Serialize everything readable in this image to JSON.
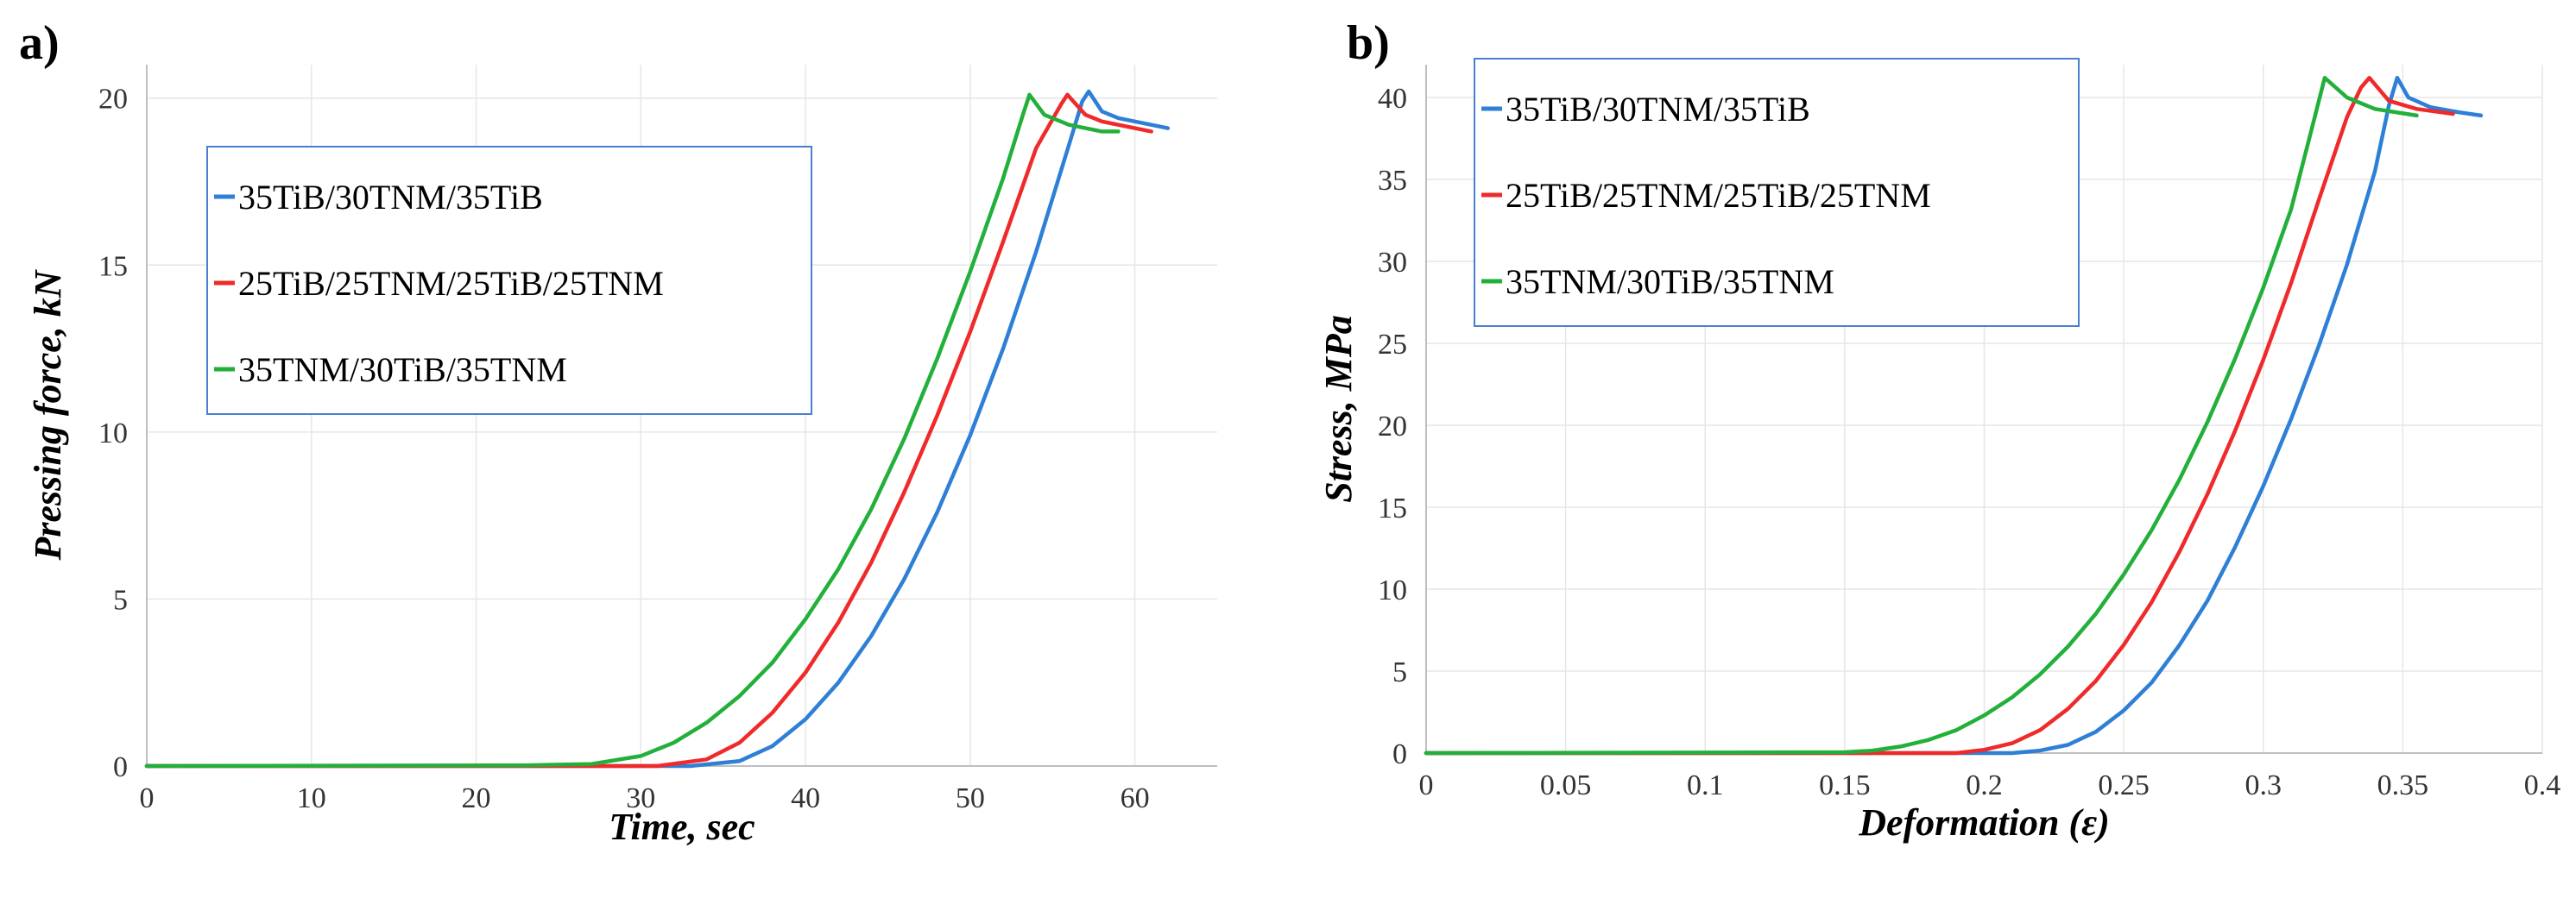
{
  "chart_data": [
    {
      "type": "line",
      "panel_label": "a)",
      "title": "",
      "xlabel": "Time, sec",
      "ylabel": "Pressing force, kN",
      "xlim": [
        0,
        65
      ],
      "ylim": [
        0,
        21
      ],
      "xticks": [
        0,
        10,
        20,
        30,
        40,
        50,
        60
      ],
      "yticks": [
        0,
        5,
        10,
        15,
        20
      ],
      "xtick_labels": [
        "0",
        "10",
        "20",
        "30",
        "40",
        "50",
        "60"
      ],
      "ytick_labels": [
        "0",
        "5",
        "10",
        "15",
        "20"
      ],
      "grid": true,
      "legend": "upper-left",
      "series": [
        {
          "name": "35TiB/30TNM/35TiB",
          "color": "#2e7fd6",
          "x": [
            0,
            33,
            36,
            38,
            40,
            42,
            44,
            46,
            48,
            50,
            52,
            54,
            56,
            56.8,
            57.2,
            58,
            59,
            60,
            61,
            62
          ],
          "y": [
            0,
            0,
            0.15,
            0.6,
            1.4,
            2.5,
            3.9,
            5.6,
            7.6,
            9.9,
            12.5,
            15.4,
            18.6,
            19.9,
            20.2,
            19.6,
            19.4,
            19.3,
            19.2,
            19.1
          ]
        },
        {
          "name": "25TiB/25TNM/25TiB/25TNM",
          "color": "#f02a2a",
          "x": [
            0,
            31,
            34,
            36,
            38,
            40,
            42,
            44,
            46,
            48,
            50,
            52,
            54,
            55.5,
            55.9,
            57,
            58,
            59,
            60,
            61
          ],
          "y": [
            0,
            0,
            0.2,
            0.7,
            1.6,
            2.8,
            4.3,
            6.1,
            8.2,
            10.5,
            13.0,
            15.7,
            18.5,
            19.8,
            20.1,
            19.5,
            19.3,
            19.2,
            19.1,
            19.0
          ]
        },
        {
          "name": "35TNM/30TiB/35TNM",
          "color": "#22b03a",
          "x": [
            0,
            23,
            27,
            30,
            32,
            34,
            36,
            38,
            40,
            42,
            44,
            46,
            48,
            50,
            52,
            53.2,
            53.6,
            54.5,
            56,
            57,
            58,
            59
          ],
          "y": [
            0,
            0.02,
            0.06,
            0.3,
            0.7,
            1.3,
            2.1,
            3.1,
            4.4,
            5.9,
            7.7,
            9.8,
            12.2,
            14.8,
            17.6,
            19.5,
            20.1,
            19.5,
            19.2,
            19.1,
            19.0,
            19.0
          ]
        }
      ]
    },
    {
      "type": "line",
      "panel_label": "b)",
      "title": "",
      "xlabel": "Deformation (ε)",
      "ylabel": "Stress, MPa",
      "xlim": [
        0,
        0.4
      ],
      "ylim": [
        0,
        42
      ],
      "xticks": [
        0,
        0.05,
        0.1,
        0.15,
        0.2,
        0.25,
        0.3,
        0.35,
        0.4
      ],
      "yticks": [
        0,
        5,
        10,
        15,
        20,
        25,
        30,
        35,
        40
      ],
      "xtick_labels": [
        "0",
        "0.05",
        "0.1",
        "0.15",
        "0.2",
        "0.25",
        "0.3",
        "0.35",
        "0.4"
      ],
      "ytick_labels": [
        "0",
        "5",
        "10",
        "15",
        "20",
        "25",
        "30",
        "35",
        "40"
      ],
      "grid": true,
      "legend": "upper-left",
      "series": [
        {
          "name": "35TiB/30TNM/35TiB",
          "color": "#2e7fd6",
          "x": [
            0,
            0.21,
            0.22,
            0.23,
            0.24,
            0.25,
            0.26,
            0.27,
            0.28,
            0.29,
            0.3,
            0.31,
            0.32,
            0.33,
            0.34,
            0.345,
            0.348,
            0.352,
            0.36,
            0.37,
            0.378
          ],
          "y": [
            0,
            0,
            0.15,
            0.5,
            1.3,
            2.6,
            4.3,
            6.6,
            9.3,
            12.6,
            16.3,
            20.4,
            24.9,
            29.8,
            35.5,
            39.5,
            41.2,
            40.0,
            39.4,
            39.1,
            38.9
          ]
        },
        {
          "name": "25TiB/25TNM/25TiB/25TNM",
          "color": "#f02a2a",
          "x": [
            0,
            0.19,
            0.2,
            0.21,
            0.22,
            0.23,
            0.24,
            0.25,
            0.26,
            0.27,
            0.28,
            0.29,
            0.3,
            0.31,
            0.32,
            0.33,
            0.335,
            0.338,
            0.345,
            0.355,
            0.368
          ],
          "y": [
            0,
            0,
            0.2,
            0.6,
            1.4,
            2.7,
            4.4,
            6.6,
            9.2,
            12.3,
            15.8,
            19.7,
            24.0,
            28.7,
            33.8,
            38.8,
            40.6,
            41.2,
            39.8,
            39.3,
            39.0
          ]
        },
        {
          "name": "35TNM/30TiB/35TNM",
          "color": "#22b03a",
          "x": [
            0,
            0.15,
            0.16,
            0.17,
            0.18,
            0.19,
            0.2,
            0.21,
            0.22,
            0.23,
            0.24,
            0.25,
            0.26,
            0.27,
            0.28,
            0.29,
            0.3,
            0.31,
            0.318,
            0.322,
            0.33,
            0.34,
            0.355
          ],
          "y": [
            0,
            0.05,
            0.15,
            0.4,
            0.8,
            1.4,
            2.3,
            3.4,
            4.8,
            6.5,
            8.5,
            10.9,
            13.6,
            16.7,
            20.2,
            24.1,
            28.4,
            33.2,
            38.5,
            41.2,
            40.0,
            39.3,
            38.9
          ]
        }
      ]
    }
  ]
}
